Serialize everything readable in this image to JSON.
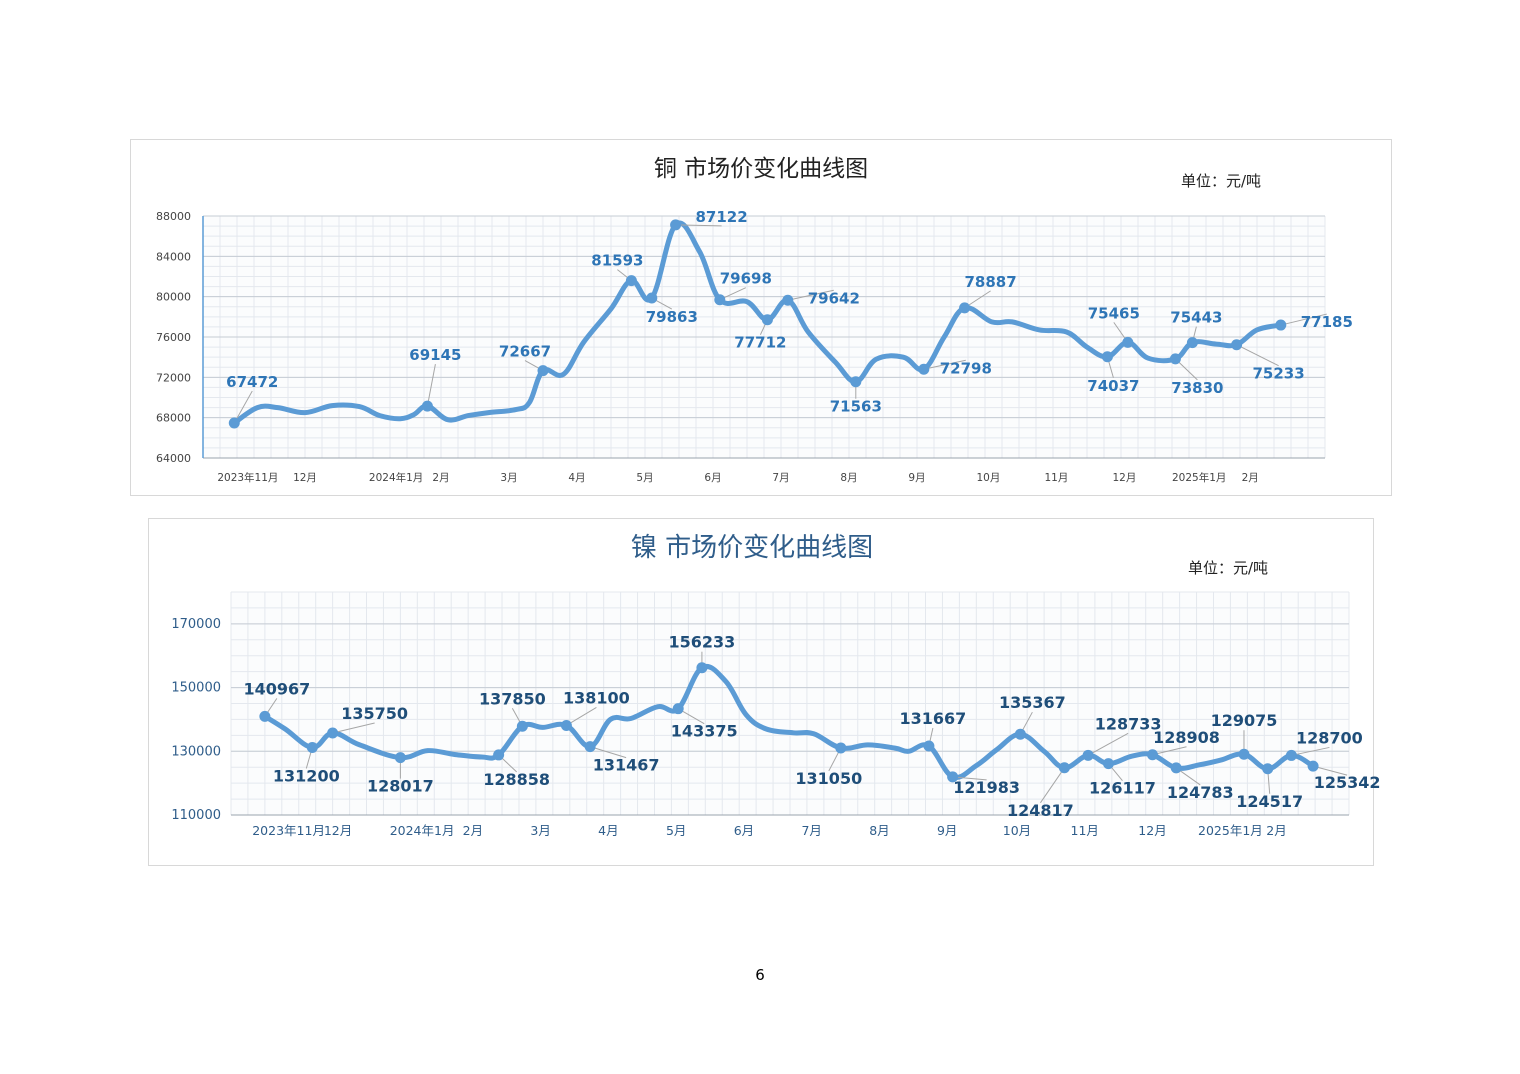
{
  "page_number": "6",
  "chart_data": [
    {
      "type": "line",
      "title": "铜 市场价变化曲线图",
      "unit": "单位：元/吨",
      "xlabel": "",
      "ylabel": "",
      "ylim": [
        64000,
        88000
      ],
      "yticks": [
        "64000",
        "68000",
        "72000",
        "76000",
        "80000",
        "84000",
        "88000"
      ],
      "x_axis_range": [
        0,
        16.5
      ],
      "x_ticks": [
        {
          "label": "2023年11月",
          "x": 0.66
        },
        {
          "label": "12月",
          "x": 1.5
        },
        {
          "label": "2024年1月",
          "x": 2.84
        },
        {
          "label": "2月",
          "x": 3.5
        },
        {
          "label": "3月",
          "x": 4.5
        },
        {
          "label": "4月",
          "x": 5.5
        },
        {
          "label": "5月",
          "x": 6.5
        },
        {
          "label": "6月",
          "x": 7.5
        },
        {
          "label": "7月",
          "x": 8.5
        },
        {
          "label": "8月",
          "x": 9.5
        },
        {
          "label": "9月",
          "x": 10.5
        },
        {
          "label": "10月",
          "x": 11.55
        },
        {
          "label": "11月",
          "x": 12.55
        },
        {
          "label": "12月",
          "x": 13.55
        },
        {
          "label": "2025年1月",
          "x": 14.65
        },
        {
          "label": "2月",
          "x": 15.4
        }
      ],
      "grid": true,
      "line_color": "#5b9bd5",
      "label_color": "#2e75b6",
      "curve": [
        [
          0.46,
          67472
        ],
        [
          0.8,
          69000
        ],
        [
          1.1,
          69000
        ],
        [
          1.5,
          68500
        ],
        [
          1.9,
          69200
        ],
        [
          2.3,
          69100
        ],
        [
          2.6,
          68200
        ],
        [
          2.9,
          67900
        ],
        [
          3.1,
          68300
        ],
        [
          3.3,
          69145
        ],
        [
          3.6,
          67800
        ],
        [
          3.9,
          68200
        ],
        [
          4.2,
          68500
        ],
        [
          4.6,
          68800
        ],
        [
          4.8,
          69500
        ],
        [
          5.0,
          72667
        ],
        [
          5.3,
          72300
        ],
        [
          5.6,
          75500
        ],
        [
          6.0,
          78800
        ],
        [
          6.3,
          81593
        ],
        [
          6.6,
          79863
        ],
        [
          6.95,
          87122
        ],
        [
          7.3,
          84500
        ],
        [
          7.6,
          79698
        ],
        [
          8.0,
          79500
        ],
        [
          8.3,
          77712
        ],
        [
          8.6,
          79642
        ],
        [
          8.9,
          76500
        ],
        [
          9.3,
          73500
        ],
        [
          9.6,
          71563
        ],
        [
          9.9,
          73800
        ],
        [
          10.3,
          74000
        ],
        [
          10.6,
          72798
        ],
        [
          10.9,
          76000
        ],
        [
          11.2,
          78887
        ],
        [
          11.6,
          77500
        ],
        [
          11.9,
          77500
        ],
        [
          12.3,
          76700
        ],
        [
          12.7,
          76500
        ],
        [
          13.0,
          75000
        ],
        [
          13.3,
          74037
        ],
        [
          13.6,
          75465
        ],
        [
          13.9,
          73900
        ],
        [
          14.3,
          73830
        ],
        [
          14.55,
          75443
        ],
        [
          14.9,
          75300
        ],
        [
          15.2,
          75233
        ],
        [
          15.5,
          76700
        ],
        [
          15.85,
          77185
        ]
      ],
      "points": [
        {
          "x": 0.46,
          "y": 67472,
          "label": "67472"
        },
        {
          "x": 3.3,
          "y": 69145,
          "label": "69145"
        },
        {
          "x": 5.0,
          "y": 72667,
          "label": "72667"
        },
        {
          "x": 6.3,
          "y": 81593,
          "label": "81593"
        },
        {
          "x": 6.6,
          "y": 79863,
          "label": "79863"
        },
        {
          "x": 6.95,
          "y": 87122,
          "label": "87122"
        },
        {
          "x": 7.6,
          "y": 79698,
          "label": "79698"
        },
        {
          "x": 8.3,
          "y": 77712,
          "label": "77712"
        },
        {
          "x": 8.6,
          "y": 79642,
          "label": "79642"
        },
        {
          "x": 9.6,
          "y": 71563,
          "label": "71563"
        },
        {
          "x": 10.6,
          "y": 72798,
          "label": "72798"
        },
        {
          "x": 11.2,
          "y": 78887,
          "label": "78887"
        },
        {
          "x": 13.3,
          "y": 74037,
          "label": "74037"
        },
        {
          "x": 13.6,
          "y": 75465,
          "label": "75465"
        },
        {
          "x": 14.3,
          "y": 73830,
          "label": "73830"
        },
        {
          "x": 14.55,
          "y": 75443,
          "label": "75443"
        },
        {
          "x": 15.2,
          "y": 75233,
          "label": "75233"
        },
        {
          "x": 15.85,
          "y": 77185,
          "label": "77185"
        }
      ]
    },
    {
      "type": "line",
      "title": "镍 市场价变化曲线图",
      "unit": "单位：元/吨",
      "xlabel": "",
      "ylabel": "",
      "ylim": [
        110000,
        180000
      ],
      "yticks": [
        "110000",
        "130000",
        "150000",
        "170000"
      ],
      "x_axis_range": [
        0,
        16.5
      ],
      "x_ticks": [
        {
          "label": "2023年11月",
          "x": 0.85
        },
        {
          "label": "12月",
          "x": 1.58
        },
        {
          "label": "2024年1月",
          "x": 2.82
        },
        {
          "label": "2月",
          "x": 3.57
        },
        {
          "label": "3月",
          "x": 4.57
        },
        {
          "label": "4月",
          "x": 5.57
        },
        {
          "label": "5月",
          "x": 6.57
        },
        {
          "label": "6月",
          "x": 7.57
        },
        {
          "label": "7月",
          "x": 8.57
        },
        {
          "label": "8月",
          "x": 9.57
        },
        {
          "label": "9月",
          "x": 10.57
        },
        {
          "label": "10月",
          "x": 11.6
        },
        {
          "label": "11月",
          "x": 12.6
        },
        {
          "label": "12月",
          "x": 13.6
        },
        {
          "label": "2025年1月",
          "x": 14.75
        },
        {
          "label": "2月",
          "x": 15.43
        }
      ],
      "grid": true,
      "line_color": "#5b9bd5",
      "label_color": "#1f4e79",
      "curve": [
        [
          0.5,
          140967
        ],
        [
          0.8,
          137000
        ],
        [
          1.2,
          131200
        ],
        [
          1.5,
          135750
        ],
        [
          1.9,
          132000
        ],
        [
          2.5,
          128017
        ],
        [
          2.9,
          130200
        ],
        [
          3.3,
          129000
        ],
        [
          3.7,
          128200
        ],
        [
          3.95,
          128858
        ],
        [
          4.3,
          137850
        ],
        [
          4.6,
          137500
        ],
        [
          4.95,
          138100
        ],
        [
          5.3,
          131467
        ],
        [
          5.6,
          140000
        ],
        [
          5.9,
          140300
        ],
        [
          6.3,
          144000
        ],
        [
          6.6,
          143375
        ],
        [
          6.95,
          156233
        ],
        [
          7.3,
          152000
        ],
        [
          7.6,
          141500
        ],
        [
          7.9,
          137000
        ],
        [
          8.3,
          135800
        ],
        [
          8.6,
          135500
        ],
        [
          9.0,
          131050
        ],
        [
          9.4,
          132000
        ],
        [
          9.8,
          131000
        ],
        [
          10.0,
          130000
        ],
        [
          10.3,
          131667
        ],
        [
          10.65,
          121983
        ],
        [
          11.0,
          125500
        ],
        [
          11.3,
          130500
        ],
        [
          11.65,
          135367
        ],
        [
          12.0,
          130000
        ],
        [
          12.3,
          124817
        ],
        [
          12.65,
          128733
        ],
        [
          12.95,
          126117
        ],
        [
          13.3,
          128500
        ],
        [
          13.6,
          128908
        ],
        [
          13.95,
          124783
        ],
        [
          14.3,
          125800
        ],
        [
          14.6,
          127200
        ],
        [
          14.95,
          129075
        ],
        [
          15.3,
          124517
        ],
        [
          15.65,
          128700
        ],
        [
          15.97,
          125342
        ]
      ],
      "points": [
        {
          "x": 0.5,
          "y": 140967,
          "label": "140967"
        },
        {
          "x": 1.2,
          "y": 131200,
          "label": "131200"
        },
        {
          "x": 1.5,
          "y": 135750,
          "label": "135750"
        },
        {
          "x": 2.5,
          "y": 128017,
          "label": "128017"
        },
        {
          "x": 3.95,
          "y": 128858,
          "label": "128858"
        },
        {
          "x": 4.3,
          "y": 137850,
          "label": "137850"
        },
        {
          "x": 4.95,
          "y": 138100,
          "label": "138100"
        },
        {
          "x": 5.3,
          "y": 131467,
          "label": "131467"
        },
        {
          "x": 6.6,
          "y": 143375,
          "label": "143375"
        },
        {
          "x": 6.95,
          "y": 156233,
          "label": "156233"
        },
        {
          "x": 9.0,
          "y": 131050,
          "label": "131050"
        },
        {
          "x": 10.3,
          "y": 131667,
          "label": "131667"
        },
        {
          "x": 10.65,
          "y": 121983,
          "label": "121983"
        },
        {
          "x": 11.65,
          "y": 135367,
          "label": "135367"
        },
        {
          "x": 12.3,
          "y": 124817,
          "label": "124817"
        },
        {
          "x": 12.65,
          "y": 128733,
          "label": "128733"
        },
        {
          "x": 12.95,
          "y": 126117,
          "label": "126117"
        },
        {
          "x": 13.6,
          "y": 128908,
          "label": "128908"
        },
        {
          "x": 13.95,
          "y": 124783,
          "label": "124783"
        },
        {
          "x": 14.95,
          "y": 129075,
          "label": "129075"
        },
        {
          "x": 15.3,
          "y": 124517,
          "label": "124517"
        },
        {
          "x": 15.65,
          "y": 128700,
          "label": "128700"
        },
        {
          "x": 15.97,
          "y": 125342,
          "label": "125342"
        }
      ]
    }
  ]
}
